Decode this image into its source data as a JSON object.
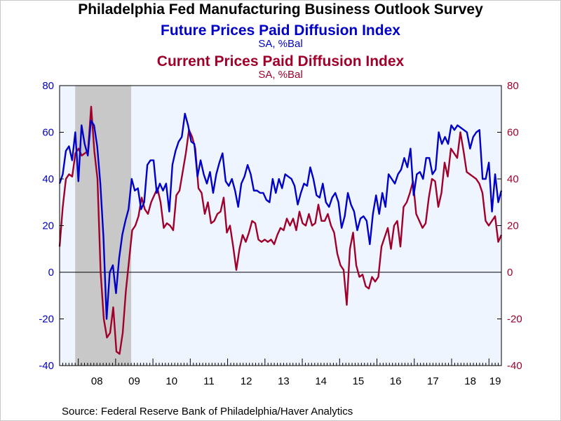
{
  "title": "Philadelphia Fed Manufacturing Business Outlook Survey",
  "series_titles": [
    {
      "name": "Future Prices Paid Diffusion Index",
      "units": "SA, %Bal",
      "color": "#0000c8"
    },
    {
      "name": "Current Prices Paid Diffusion Index",
      "units": "SA, %Bal",
      "color": "#a0002a"
    }
  ],
  "source": "Source:  Federal Reserve Bank of Philadelphia/Haver Analytics",
  "chart_data": {
    "type": "line",
    "x_start": "2007-07",
    "x_end": "2019-05",
    "x_tick_labels": [
      "08",
      "09",
      "10",
      "11",
      "12",
      "13",
      "14",
      "15",
      "16",
      "17",
      "18",
      "19"
    ],
    "ylim": [
      -40,
      80
    ],
    "left_y_ticks": [
      "80",
      "60",
      "40",
      "20",
      "0",
      "-20",
      "-40"
    ],
    "right_y_ticks": [
      "80",
      "60",
      "40",
      "20",
      "0",
      "-20",
      "-40"
    ],
    "recession_shading": {
      "start": "2007-12",
      "end": "2009-06",
      "color": "#c8c8c8"
    },
    "plot_background": "#eef5ff",
    "series": [
      {
        "name": "Future Prices Paid Diffusion Index",
        "color": "#0000c8",
        "values": [
          38,
          42,
          52,
          54,
          48,
          60,
          39,
          63,
          55,
          50,
          65,
          63,
          54,
          38,
          15,
          -20,
          0,
          3,
          -9,
          6,
          16,
          22,
          27,
          40,
          35,
          36,
          27,
          30,
          46,
          48,
          48,
          34,
          38,
          35,
          38,
          26,
          46,
          52,
          56,
          58,
          68,
          63,
          56,
          55,
          41,
          48,
          42,
          38,
          43,
          34,
          42,
          47,
          51,
          39,
          37,
          40,
          35,
          28,
          38,
          41,
          46,
          42,
          35,
          35,
          34,
          34,
          31,
          30,
          40,
          34,
          40,
          36,
          42,
          41,
          40,
          37,
          29,
          34,
          38,
          37,
          45,
          40,
          33,
          32,
          38,
          30,
          28,
          32,
          34,
          30,
          19,
          24,
          34,
          29,
          26,
          18,
          23,
          24,
          22,
          12,
          25,
          33,
          25,
          34,
          28,
          42,
          40,
          38,
          42,
          44,
          49,
          45,
          53,
          33,
          42,
          43,
          40,
          49,
          49,
          42,
          44,
          60,
          55,
          58,
          55,
          63,
          61,
          63,
          62,
          61,
          60,
          53,
          58,
          60,
          61,
          40,
          40,
          47,
          26,
          42,
          30,
          35
        ]
      },
      {
        "name": "Current Prices Paid Diffusion Index",
        "color": "#a0002a",
        "values": [
          11,
          28,
          40,
          42,
          41,
          51,
          53,
          50,
          51,
          52,
          71,
          52,
          40,
          0,
          -20,
          -28,
          -26,
          -15,
          -34,
          -35,
          -26,
          -8,
          5,
          18,
          20,
          24,
          32,
          27,
          25,
          30,
          33,
          36,
          30,
          19,
          21,
          20,
          18,
          33,
          35,
          43,
          51,
          61,
          58,
          53,
          36,
          34,
          25,
          30,
          21,
          22,
          25,
          26,
          32,
          17,
          20,
          11,
          1,
          10,
          16,
          13,
          17,
          22,
          21,
          14,
          13,
          14,
          13,
          14,
          12,
          16,
          19,
          18,
          23,
          20,
          23,
          18,
          26,
          21,
          20,
          25,
          20,
          21,
          29,
          22,
          22,
          25,
          20,
          17,
          8,
          3,
          1,
          -14,
          10,
          17,
          3,
          -2,
          -1,
          -6,
          -7,
          -2,
          -4,
          -2,
          11,
          15,
          19,
          10,
          20,
          22,
          11,
          28,
          30,
          34,
          39,
          25,
          22,
          19,
          21,
          32,
          40,
          39,
          28,
          34,
          47,
          41,
          53,
          51,
          49,
          60,
          52,
          43,
          42,
          41,
          40,
          38,
          34,
          22,
          20,
          22,
          24,
          13,
          16
        ]
      }
    ]
  }
}
